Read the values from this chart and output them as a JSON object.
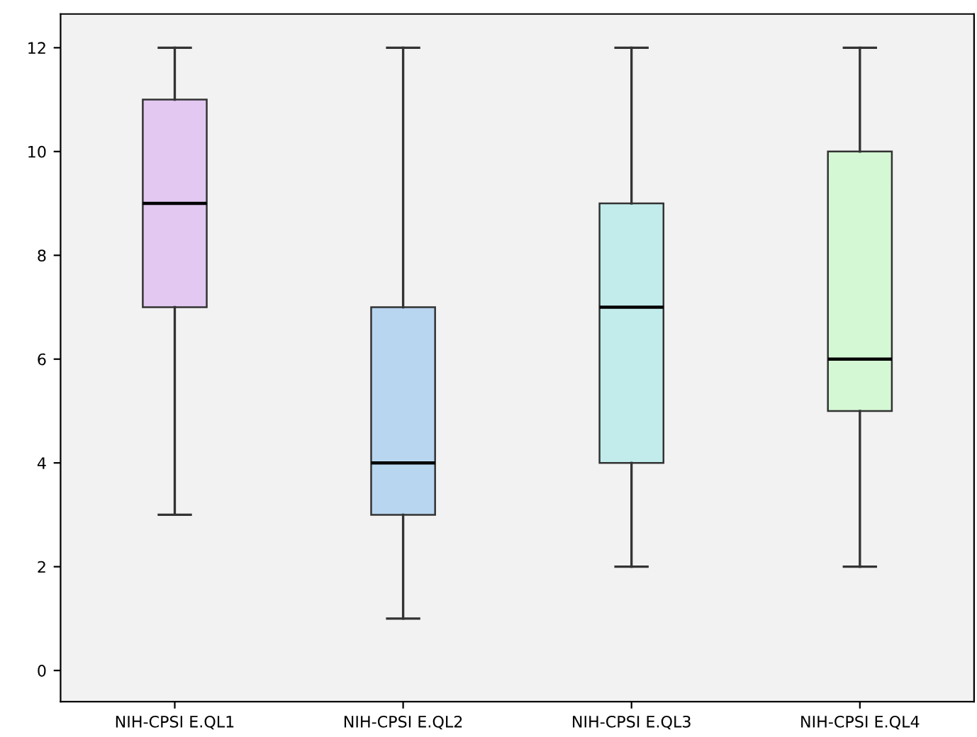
{
  "chart_data": {
    "type": "box",
    "categories": [
      "NIH-CPSI E.QL1",
      "NIH-CPSI E.QL2",
      "NIH-CPSI E.QL3",
      "NIH-CPSI E.QL4"
    ],
    "boxes": [
      {
        "low": 3,
        "q1": 7,
        "median": 9,
        "q3": 11,
        "high": 12
      },
      {
        "low": 1,
        "q1": 3,
        "median": 4,
        "q3": 7,
        "high": 12
      },
      {
        "low": 2,
        "q1": 4,
        "median": 7,
        "q3": 9,
        "high": 12
      },
      {
        "low": 2,
        "q1": 5,
        "median": 6,
        "q3": 10,
        "high": 12
      }
    ],
    "colors": [
      "#e3c8f2",
      "#b8d6f0",
      "#c2ecec",
      "#d4f7d4"
    ],
    "ylim": [
      -0.6,
      12.65
    ],
    "yticks": [
      0,
      2,
      4,
      6,
      8,
      10,
      12
    ],
    "grid": false
  }
}
